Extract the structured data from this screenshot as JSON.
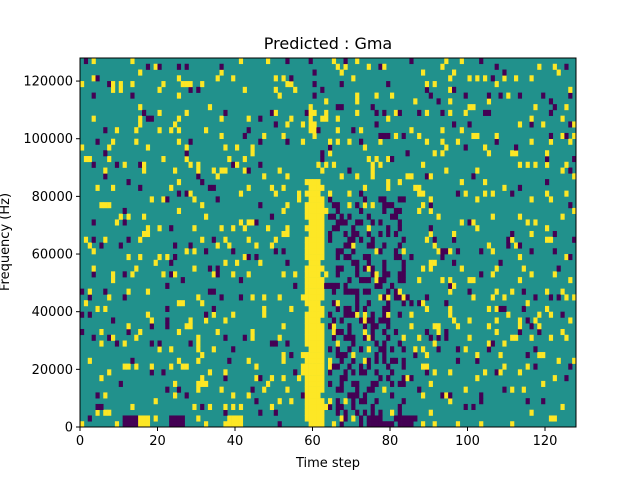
{
  "chart_data": {
    "type": "heatmap",
    "title": "Predicted : Gma",
    "xlabel": "Time step",
    "ylabel": "Frequency (Hz)",
    "xlim": [
      0,
      128
    ],
    "ylim": [
      0,
      128000
    ],
    "xticks": [
      0,
      20,
      40,
      60,
      80,
      100,
      120
    ],
    "yticks": [
      0,
      20000,
      40000,
      60000,
      80000,
      100000,
      120000
    ],
    "ytick_labels": [
      "0",
      "20000",
      "40000",
      "60000",
      "80000",
      "100000",
      "120000"
    ],
    "grid": false,
    "legend": "none",
    "colors": {
      "background": "#21918c",
      "high": "#fde725",
      "low": "#440154"
    },
    "n_time_steps": 128,
    "n_freq_bins": 64,
    "bin_hz": 2000,
    "dominant_band": {
      "x_range": [
        58,
        63
      ],
      "freq_range_hz": [
        0,
        86000
      ],
      "value": "high"
    },
    "secondary_band": {
      "x_range": [
        59,
        61
      ],
      "freq_range_hz": [
        100000,
        114000
      ],
      "value": "high"
    },
    "low_cluster": {
      "x_range": [
        64,
        84
      ],
      "freq_range_hz": [
        0,
        80000
      ],
      "value": "low"
    },
    "bottom_row": {
      "freq_range_hz": [
        0,
        4000
      ],
      "segments": [
        {
          "x_range": [
            11,
            15
          ],
          "value": "low"
        },
        {
          "x_range": [
            15,
            18
          ],
          "value": "high"
        },
        {
          "x_range": [
            23,
            27
          ],
          "value": "low"
        },
        {
          "x_range": [
            38,
            42
          ],
          "value": "high"
        },
        {
          "x_range": [
            74,
            78
          ],
          "value": "low"
        },
        {
          "x_range": [
            84,
            86
          ],
          "value": "low"
        }
      ]
    },
    "speckle_density": {
      "high": 0.07,
      "low": 0.045
    }
  }
}
